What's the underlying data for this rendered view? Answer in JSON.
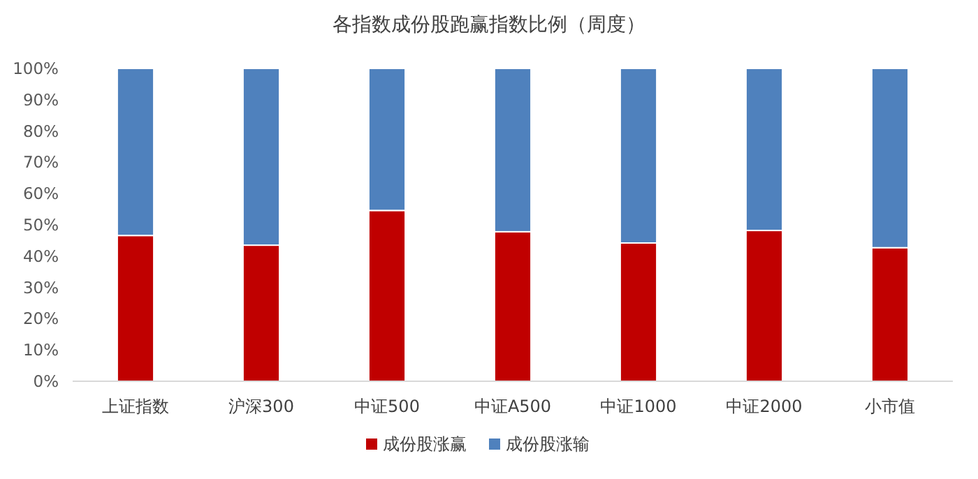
{
  "chart_data": {
    "type": "bar",
    "title": "各指数成份股跑赢指数比例（周度）",
    "categories": [
      "上证指数",
      "沪深300",
      "中证500",
      "中证A500",
      "中证1000",
      "中证2000",
      "小市值"
    ],
    "stacked": true,
    "legend": "bottom",
    "grid": false,
    "ylim": [
      0,
      100
    ],
    "yticks": [
      {
        "value": 0,
        "label": "0%"
      },
      {
        "value": 10,
        "label": "10%"
      },
      {
        "value": 20,
        "label": "20%"
      },
      {
        "value": 30,
        "label": "30%"
      },
      {
        "value": 40,
        "label": "40%"
      },
      {
        "value": 50,
        "label": "50%"
      },
      {
        "value": 60,
        "label": "60%"
      },
      {
        "value": 70,
        "label": "70%"
      },
      {
        "value": 80,
        "label": "80%"
      },
      {
        "value": 90,
        "label": "90%"
      },
      {
        "value": 100,
        "label": "100%"
      }
    ],
    "series": [
      {
        "name": "成份股涨赢",
        "color": "#c00000",
        "values": [
          46.6,
          43.5,
          54.6,
          47.8,
          44.2,
          48.2,
          42.7
        ]
      },
      {
        "name": "成份股涨输",
        "color": "#4f81bd",
        "values": [
          53.4,
          56.5,
          45.4,
          52.2,
          55.8,
          51.8,
          57.3
        ]
      }
    ]
  }
}
